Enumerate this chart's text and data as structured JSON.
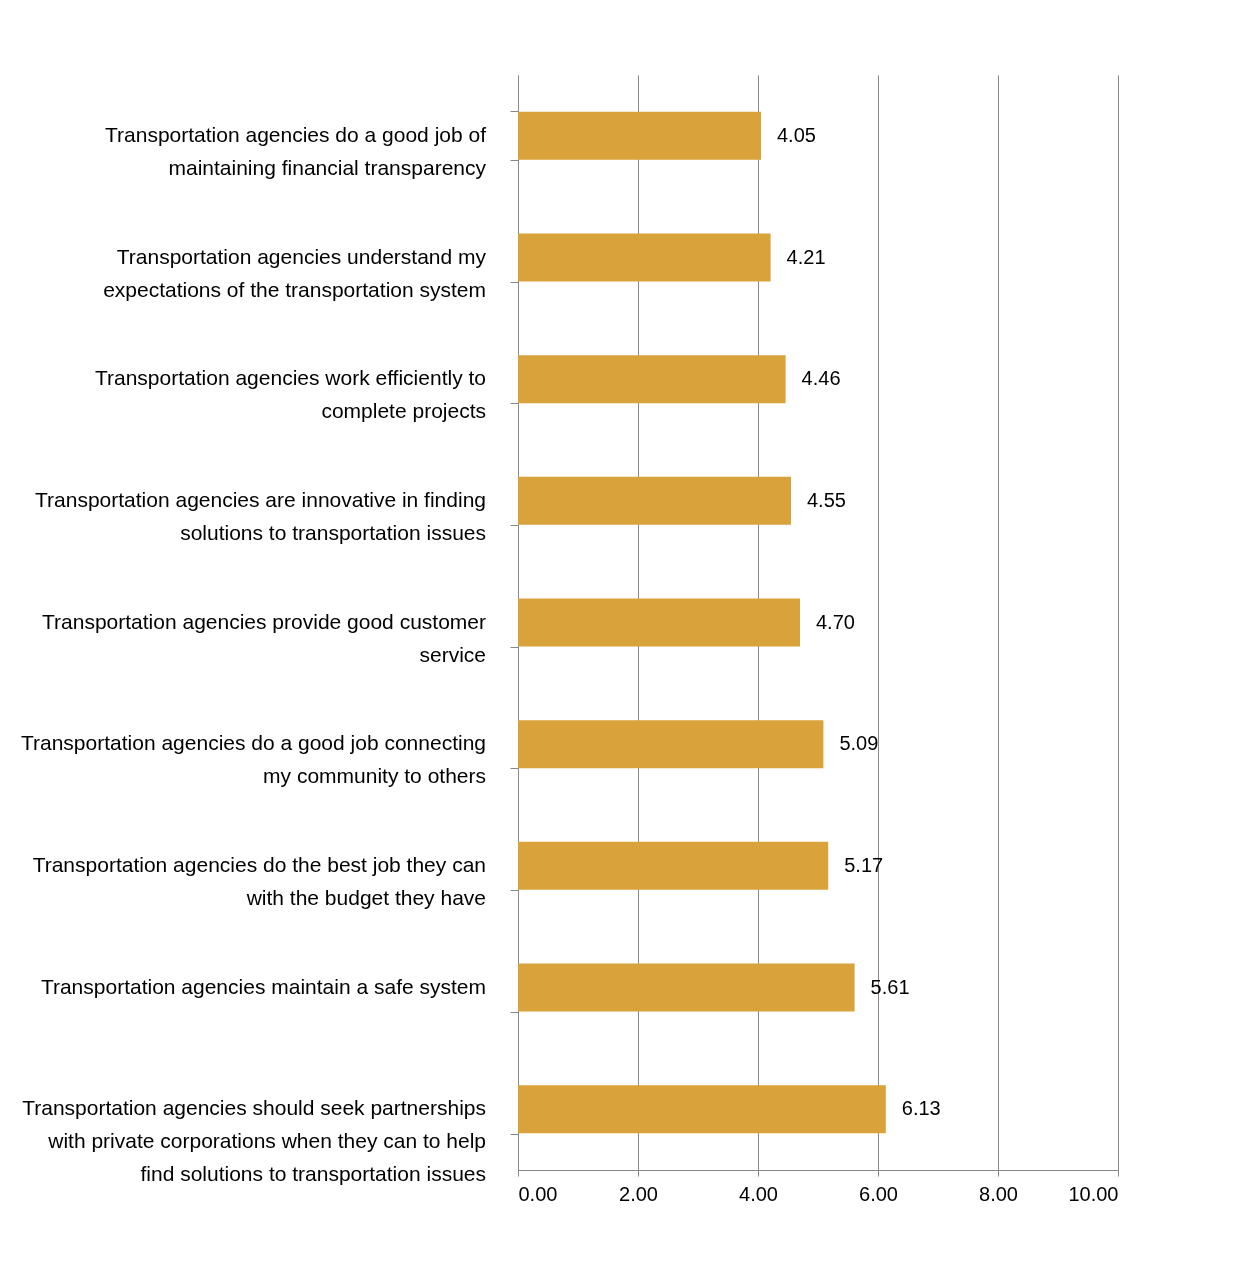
{
  "chart_data": {
    "type": "bar",
    "orientation": "horizontal",
    "categories": [
      "Transportation agencies do a good job of maintaining financial transparency",
      "Transportation agencies understand my expectations of the transportation system",
      "Transportation agencies work efficiently to complete projects",
      "Transportation agencies are innovative in finding solutions to transportation issues",
      "Transportation agencies provide good customer service",
      "Transportation agencies do a good job connecting my community to others",
      "Transportation agencies do the best job they can with the budget they have",
      "Transportation agencies maintain a safe system",
      "Transportation agencies should seek partnerships with private corporations when they can to help find solutions to transportation issues"
    ],
    "values": [
      4.05,
      4.21,
      4.46,
      4.55,
      4.7,
      5.09,
      5.17,
      5.61,
      6.13
    ],
    "value_labels": [
      "4.05",
      "4.21",
      "4.46",
      "4.55",
      "4.70",
      "5.09",
      "5.17",
      "5.61",
      "6.13"
    ],
    "color": "#d9a23a",
    "xlim": [
      0,
      10
    ],
    "xticks": [
      {
        "value": 0,
        "label": "0.00"
      },
      {
        "value": 2,
        "label": "2.00"
      },
      {
        "value": 4,
        "label": "4.00"
      },
      {
        "value": 6,
        "label": "6.00"
      },
      {
        "value": 8,
        "label": "8.00"
      },
      {
        "value": 10,
        "label": "10.00"
      }
    ],
    "grid": "x"
  }
}
